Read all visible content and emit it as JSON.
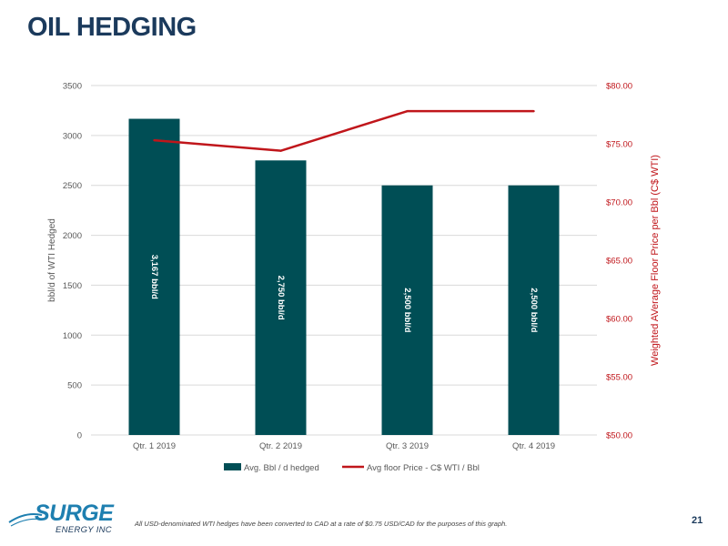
{
  "slide": {
    "title": "OIL HEDGING",
    "footnote": "All USD-denominated WTI hedges have been converted to CAD at a rate of $0.75 USD/CAD for the purposes of this graph.",
    "page_number": "21",
    "logo_text": "SURGE",
    "logo_subtext": "ENERGY INC"
  },
  "colors": {
    "bar": "#004e55",
    "line": "#c0161b",
    "title": "#1b3a5c",
    "axis_text": "#595959",
    "grid": "#d9d9d9",
    "logo": "#1e7fb0"
  },
  "chart_data": {
    "type": "bar",
    "categories": [
      "Qtr. 1 2019",
      "Qtr. 2 2019",
      "Qtr. 3 2019",
      "Qtr. 4 2019"
    ],
    "series": [
      {
        "name": "Avg. Bbl / d hedged",
        "type": "bar",
        "axis": "left",
        "values": [
          3167,
          2750,
          2500,
          2500
        ],
        "data_labels": [
          "3,167 bbl/d",
          "2,750 bbl/d",
          "2,500 bbl/d",
          "2,500 bbl/d"
        ]
      },
      {
        "name": "Avg floor Price - C$ WTI / Bbl",
        "type": "line",
        "axis": "right",
        "values": [
          75.3,
          74.4,
          77.8,
          77.8
        ]
      }
    ],
    "ylabel": "bbl/d of WTI Hedged",
    "y2label": "Weighted AVerage Floor Price per Bbl (C$ WTI)",
    "ylim": [
      0,
      3500
    ],
    "y2lim": [
      50,
      80
    ],
    "yticks": [
      "0",
      "500",
      "1000",
      "1500",
      "2000",
      "2500",
      "3000",
      "3500"
    ],
    "y2ticks": [
      "$50.00",
      "$55.00",
      "$60.00",
      "$65.00",
      "$70.00",
      "$75.00",
      "$80.00"
    ],
    "grid": true,
    "legend_position": "bottom"
  }
}
